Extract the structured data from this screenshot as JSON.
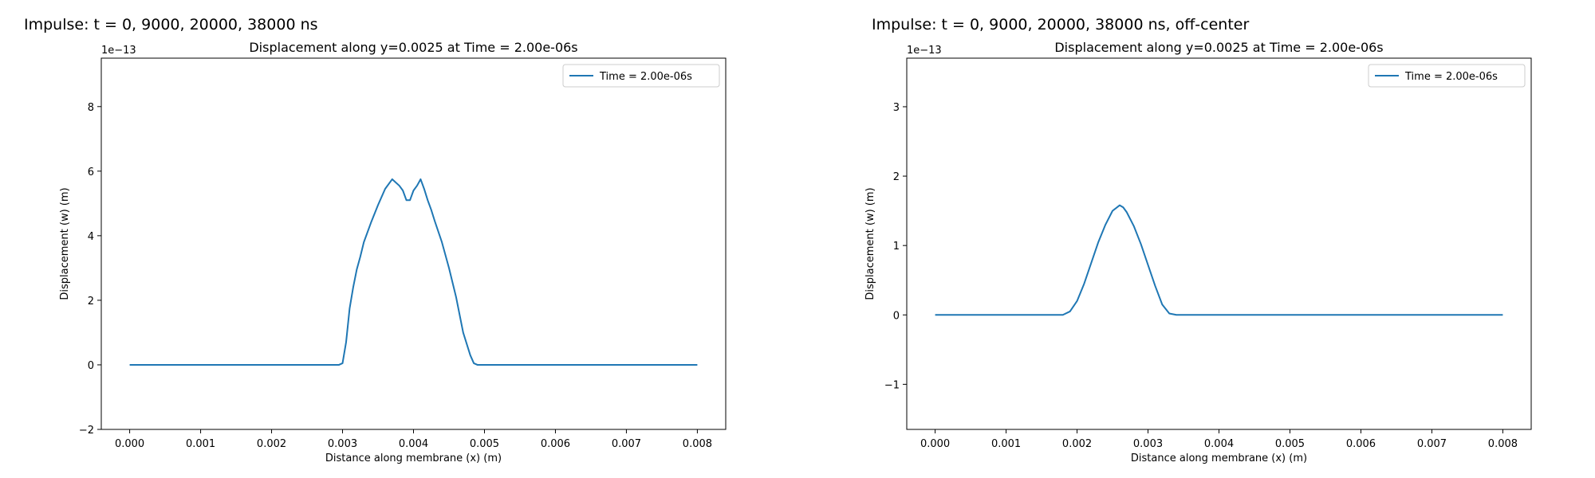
{
  "figure_titles": [
    "Impulse: t = 0, 9000, 20000, 38000 ns",
    "Impulse: t = 0, 9000, 20000, 38000 ns, off-center"
  ],
  "colors": {
    "series": "#1f77b4",
    "axes": "#000000",
    "background": "#ffffff"
  },
  "chart_data": [
    {
      "type": "line",
      "title": "Displacement along y=0.0025 at Time = 2.00e-06s",
      "xlabel": "Distance along membrane (x) (m)",
      "ylabel": "Displacement (w) (m)",
      "offset_text": "1e−13",
      "xlim": [
        -0.0004,
        0.0084
      ],
      "ylim": [
        -2.0,
        9.5
      ],
      "xticks": [
        0.0,
        0.001,
        0.002,
        0.003,
        0.004,
        0.005,
        0.006,
        0.007,
        0.008
      ],
      "xtick_labels": [
        "0.000",
        "0.001",
        "0.002",
        "0.003",
        "0.004",
        "0.005",
        "0.006",
        "0.007",
        "0.008"
      ],
      "yticks": [
        -2,
        0,
        2,
        4,
        6,
        8
      ],
      "ytick_labels": [
        "−2",
        "0",
        "2",
        "4",
        "6",
        "8"
      ],
      "legend_position": "top-right",
      "grid": false,
      "series": [
        {
          "name": "Time = 2.00e-06s",
          "color": "#1f77b4",
          "x": [
            0.0,
            0.0026,
            0.0028,
            0.00295,
            0.003,
            0.00305,
            0.0031,
            0.00315,
            0.0032,
            0.00325,
            0.0033,
            0.0034,
            0.0035,
            0.0036,
            0.0037,
            0.0038,
            0.00385,
            0.0039,
            0.00395,
            0.004,
            0.00405,
            0.0041,
            0.00415,
            0.0042,
            0.00425,
            0.0043,
            0.0044,
            0.0045,
            0.0046,
            0.0047,
            0.0048,
            0.00485,
            0.0049,
            0.00495,
            0.005,
            0.0051,
            0.008
          ],
          "y": [
            0.0,
            0.0,
            0.0,
            0.0,
            0.05,
            0.7,
            1.75,
            2.4,
            2.95,
            3.35,
            3.8,
            4.4,
            4.95,
            5.45,
            5.75,
            5.55,
            5.4,
            5.1,
            5.1,
            5.4,
            5.55,
            5.75,
            5.45,
            5.1,
            4.8,
            4.45,
            3.8,
            3.0,
            2.1,
            1.0,
            0.3,
            0.05,
            0.0,
            0.0,
            0.0,
            0.0,
            0.0
          ]
        }
      ]
    },
    {
      "type": "line",
      "title": "Displacement along y=0.0025 at Time = 2.00e-06s",
      "xlabel": "Distance along membrane (x) (m)",
      "ylabel": "Displacement (w) (m)",
      "offset_text": "1e−13",
      "xlim": [
        -0.0004,
        0.0084
      ],
      "ylim": [
        -1.65,
        3.7
      ],
      "xticks": [
        0.0,
        0.001,
        0.002,
        0.003,
        0.004,
        0.005,
        0.006,
        0.007,
        0.008
      ],
      "xtick_labels": [
        "0.000",
        "0.001",
        "0.002",
        "0.003",
        "0.004",
        "0.005",
        "0.006",
        "0.007",
        "0.008"
      ],
      "yticks": [
        -1,
        0,
        1,
        2,
        3
      ],
      "ytick_labels": [
        "−1",
        "0",
        "1",
        "2",
        "3"
      ],
      "legend_position": "top-right",
      "grid": false,
      "series": [
        {
          "name": "Time = 2.00e-06s",
          "color": "#1f77b4",
          "x": [
            0.0,
            0.0018,
            0.0019,
            0.002,
            0.0021,
            0.0022,
            0.0023,
            0.0024,
            0.0025,
            0.0026,
            0.00265,
            0.0027,
            0.0028,
            0.0029,
            0.003,
            0.0031,
            0.0032,
            0.0033,
            0.0034,
            0.0035,
            0.008
          ],
          "y": [
            0.0,
            0.0,
            0.05,
            0.2,
            0.45,
            0.75,
            1.05,
            1.3,
            1.5,
            1.58,
            1.55,
            1.48,
            1.28,
            1.02,
            0.72,
            0.42,
            0.15,
            0.02,
            0.0,
            0.0,
            0.0
          ]
        }
      ]
    }
  ]
}
